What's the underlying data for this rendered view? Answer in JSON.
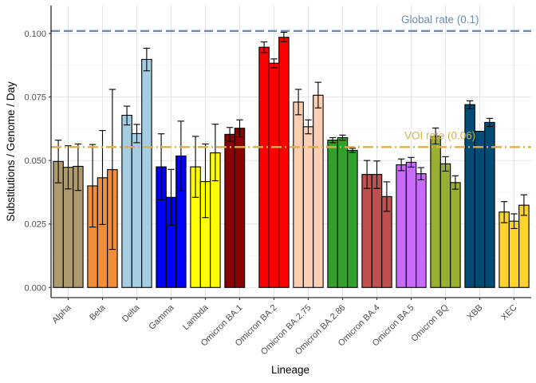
{
  "chart_data": {
    "type": "bar",
    "xlabel": "Lineage",
    "ylabel": "Substitutions / Genome / Day",
    "ylim": [
      -0.004,
      0.111
    ],
    "yticks": [
      0.0,
      0.025,
      0.05,
      0.075,
      0.1
    ],
    "ytick_labels": [
      "0.000",
      "0.025",
      "0.050",
      "0.075",
      "0.100"
    ],
    "grid": true,
    "legend": "none",
    "categories": [
      "Alpha",
      "Beta",
      "Delta",
      "Gamma",
      "Lambda",
      "Omicron BA.1",
      "Omicron BA.2",
      "Omicron BA.2.75",
      "Omicron BA.2.86",
      "Omicron BA.4",
      "Omicron BA.5",
      "Omicron BQ",
      "XBB",
      "XEC"
    ],
    "colors": [
      "#AD9A6F",
      "#F28E3A",
      "#A6CEE3",
      "#0000FF",
      "#FFFF00",
      "#8B0000",
      "#FF0000",
      "#FCCFB5",
      "#33A02C",
      "#C0504D",
      "#C86BFA",
      "#99AF2F",
      "#004C75",
      "#FFD22C"
    ],
    "groups": [
      {
        "values": [
          0.0496,
          0.0473,
          0.0477
        ],
        "err_low": [
          0.0412,
          0.0388,
          0.0382
        ],
        "err_high": [
          0.058,
          0.0558,
          0.0565
        ]
      },
      {
        "values": [
          0.04,
          0.0432,
          0.0464
        ],
        "err_low": [
          0.0238,
          0.0248,
          0.015
        ],
        "err_high": [
          0.0563,
          0.0618,
          0.078
        ]
      },
      {
        "values": [
          0.0678,
          0.0606,
          0.0898
        ],
        "err_low": [
          0.064,
          0.057,
          0.0853
        ],
        "err_high": [
          0.0714,
          0.0642,
          0.0942
        ]
      },
      {
        "values": [
          0.0475,
          0.0355,
          0.0518
        ],
        "err_low": [
          0.0345,
          0.0245,
          0.038
        ],
        "err_high": [
          0.0605,
          0.0465,
          0.0655
        ]
      },
      {
        "values": [
          0.0475,
          0.0417,
          0.053
        ],
        "err_low": [
          0.0355,
          0.0275,
          0.042
        ],
        "err_high": [
          0.0595,
          0.0565,
          0.0643
        ]
      },
      {
        "values": [
          0.0603,
          0.0627,
          null
        ],
        "err_low": [
          0.0575,
          0.0593,
          null
        ],
        "err_high": [
          0.063,
          0.066,
          null
        ]
      },
      {
        "values": [
          0.0946,
          0.0883,
          0.0985
        ],
        "err_low": [
          0.0925,
          0.0865,
          0.0968
        ],
        "err_high": [
          0.0967,
          0.09,
          0.1005
        ]
      },
      {
        "values": [
          0.073,
          0.0633,
          0.0757
        ],
        "err_low": [
          0.068,
          0.0605,
          0.0707
        ],
        "err_high": [
          0.078,
          0.066,
          0.0808
        ]
      },
      {
        "values": [
          0.058,
          0.059,
          0.054
        ],
        "err_low": [
          0.057,
          0.058,
          0.0532
        ],
        "err_high": [
          0.059,
          0.06,
          0.0548
        ]
      },
      {
        "values": [
          0.0445,
          0.0445,
          0.0358
        ],
        "err_low": [
          0.039,
          0.039,
          0.03
        ],
        "err_high": [
          0.05,
          0.0498,
          0.0416
        ]
      },
      {
        "values": [
          0.0483,
          0.0493,
          0.0448
        ],
        "err_low": [
          0.046,
          0.0474,
          0.0424
        ],
        "err_high": [
          0.0506,
          0.0512,
          0.0472
        ]
      },
      {
        "values": [
          0.0596,
          0.0487,
          0.0413
        ],
        "err_low": [
          0.0565,
          0.0458,
          0.0387
        ],
        "err_high": [
          0.0628,
          0.0515,
          0.044
        ]
      },
      {
        "values": [
          0.072,
          0.0615,
          0.065
        ],
        "err_low": [
          0.0704,
          null,
          0.0634
        ],
        "err_high": [
          0.0735,
          null,
          0.0666
        ]
      },
      {
        "values": [
          0.0297,
          0.0261,
          0.0324
        ],
        "err_low": [
          0.0255,
          0.0232,
          0.0284
        ],
        "err_high": [
          0.0338,
          0.029,
          0.0365
        ]
      }
    ],
    "reference_lines": [
      {
        "label": "Global rate (0.1)",
        "value": 0.101,
        "color": "#6A8DB5",
        "dash": "long-dash"
      },
      {
        "label": "VOI rate (0.06)",
        "value": 0.0553,
        "color": "#D9B04C",
        "dash": "dash-dot"
      }
    ]
  }
}
